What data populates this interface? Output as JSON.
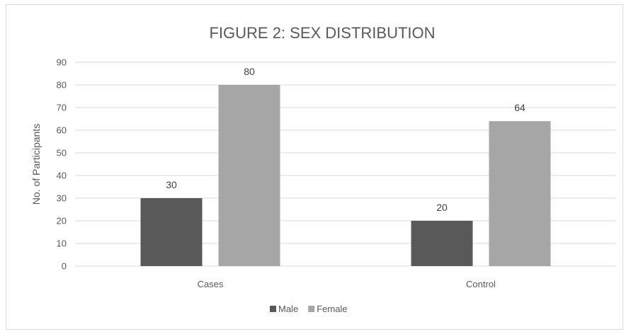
{
  "chart_data": {
    "type": "bar",
    "title": "FIGURE 2: SEX DISTRIBUTION",
    "xlabel": "",
    "ylabel": "No. of Participants",
    "categories": [
      "Cases",
      "Control"
    ],
    "series": [
      {
        "name": "Male",
        "values": [
          30,
          20
        ],
        "color": "#595959"
      },
      {
        "name": "Female",
        "values": [
          80,
          64
        ],
        "color": "#a6a6a6"
      }
    ],
    "ylim": [
      0,
      90
    ],
    "yticks": [
      0,
      10,
      20,
      30,
      40,
      50,
      60,
      70,
      80,
      90
    ],
    "grid": true,
    "legend": "bottom",
    "data_labels": true
  }
}
